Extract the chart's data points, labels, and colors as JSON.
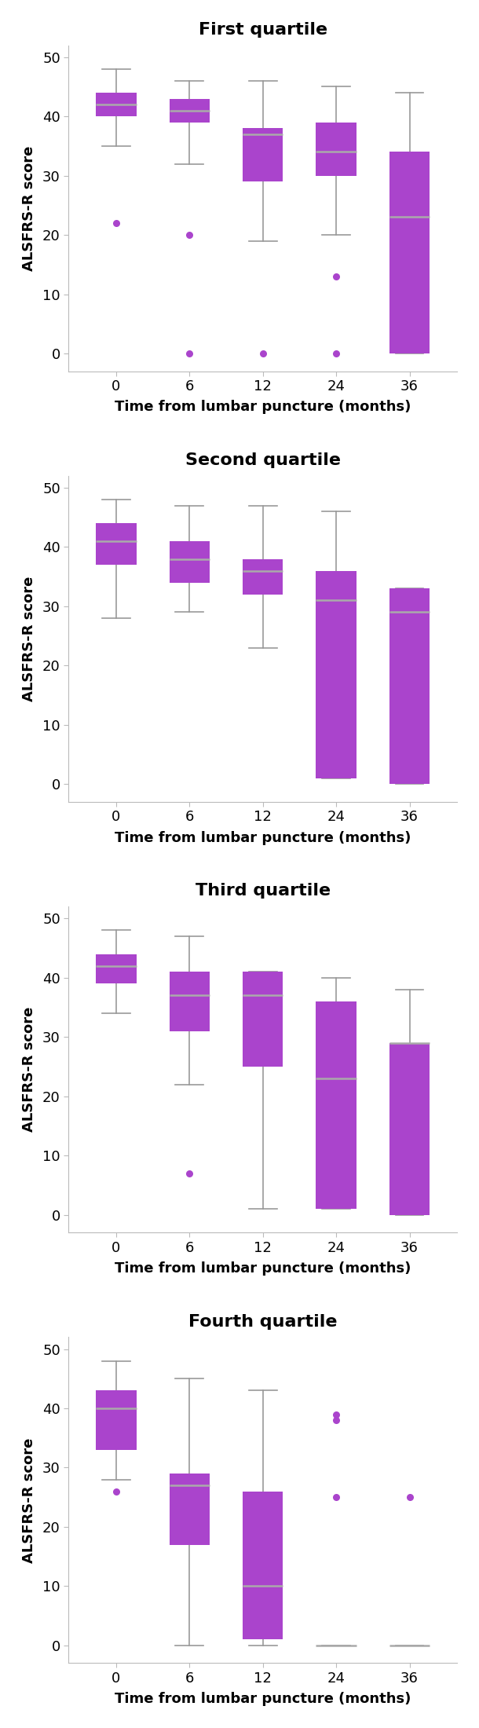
{
  "titles": [
    "First quartile",
    "Second quartile",
    "Third quartile",
    "Fourth quartile"
  ],
  "xlabel": "Time from lumbar puncture (months)",
  "ylabel": "ALSFRS-R score",
  "xtick_labels": [
    "0",
    "6",
    "12",
    "24",
    "36"
  ],
  "ylim": [
    -3,
    52
  ],
  "yticks": [
    0,
    10,
    20,
    30,
    40,
    50
  ],
  "box_color": "#AA44CC",
  "median_color": "#AAAAAA",
  "whisker_color": "#999999",
  "flier_color": "#AA44CC",
  "box_width": 0.55,
  "plots": [
    {
      "q1": [
        40,
        39,
        29,
        30,
        0
      ],
      "median": [
        42,
        41,
        37,
        34,
        23
      ],
      "q3": [
        44,
        43,
        38,
        39,
        34
      ],
      "whislo": [
        35,
        32,
        19,
        20,
        0
      ],
      "whishi": [
        48,
        46,
        46,
        45,
        44
      ],
      "fliers": [
        [
          22
        ],
        [
          20,
          0
        ],
        [
          0
        ],
        [
          13,
          0
        ],
        []
      ]
    },
    {
      "q1": [
        37,
        34,
        32,
        1,
        0
      ],
      "median": [
        41,
        38,
        36,
        31,
        29
      ],
      "q3": [
        44,
        41,
        38,
        36,
        33
      ],
      "whislo": [
        28,
        29,
        23,
        1,
        0
      ],
      "whishi": [
        48,
        47,
        47,
        46,
        33
      ],
      "fliers": [
        [],
        [],
        [],
        [],
        []
      ]
    },
    {
      "q1": [
        39,
        31,
        25,
        1,
        0
      ],
      "median": [
        42,
        37,
        37,
        23,
        29
      ],
      "q3": [
        44,
        41,
        41,
        36,
        29
      ],
      "whislo": [
        34,
        22,
        1,
        1,
        0
      ],
      "whishi": [
        48,
        47,
        41,
        40,
        38
      ],
      "fliers": [
        [],
        [
          7
        ],
        [],
        [],
        []
      ]
    },
    {
      "q1": [
        33,
        17,
        1,
        0,
        0
      ],
      "median": [
        40,
        27,
        10,
        0,
        0
      ],
      "q3": [
        43,
        29,
        26,
        0,
        0
      ],
      "whislo": [
        28,
        0,
        0,
        0,
        0
      ],
      "whishi": [
        48,
        45,
        43,
        0,
        0
      ],
      "fliers": [
        [
          26
        ],
        [],
        [],
        [
          39,
          38,
          25
        ],
        [
          25
        ]
      ]
    }
  ]
}
